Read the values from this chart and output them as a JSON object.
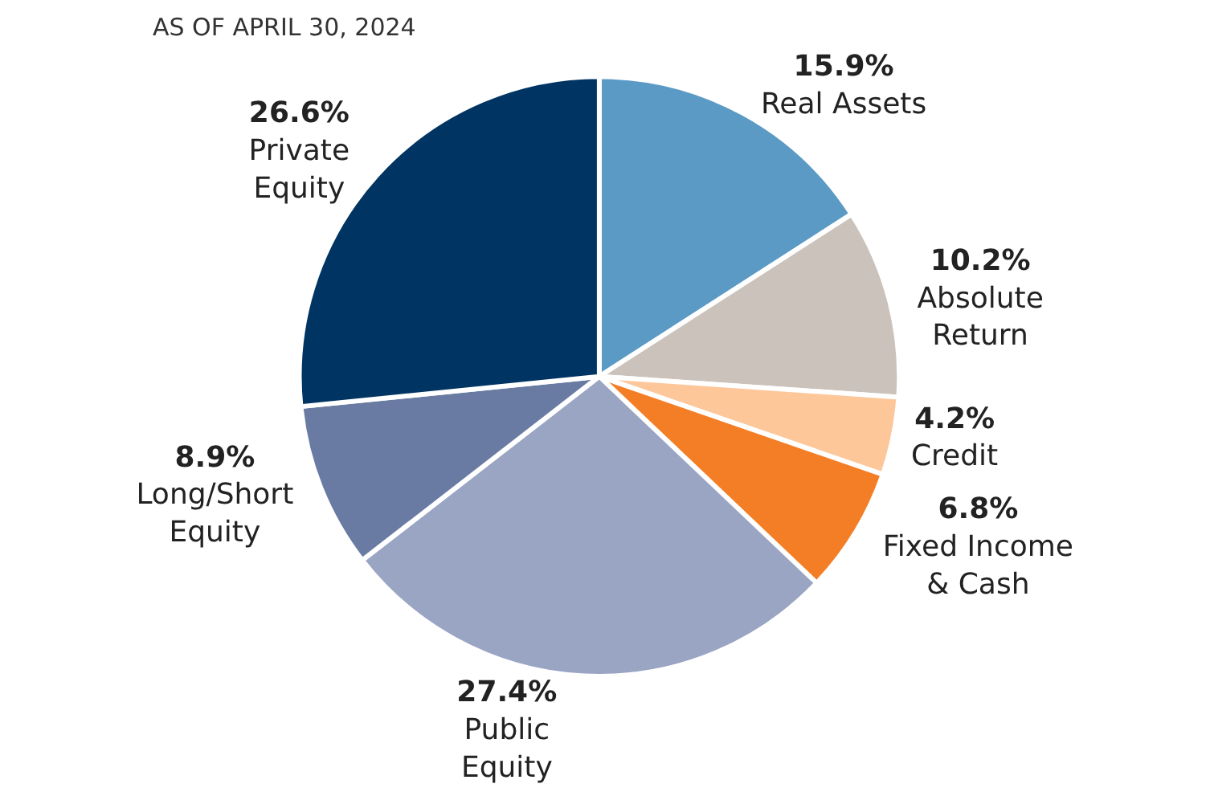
{
  "chart_data": {
    "type": "pie",
    "subtitle": "AS OF APRIL 30, 2024",
    "categories": [
      "Real Assets",
      "Absolute Return",
      "Credit",
      "Fixed Income & Cash",
      "Public Equity",
      "Long/Short Equity",
      "Private Equity"
    ],
    "values": [
      15.9,
      10.2,
      4.2,
      6.8,
      27.4,
      8.9,
      26.6
    ],
    "value_labels": [
      "15.9%",
      "10.2%",
      "4.2%",
      "6.8%",
      "27.4%",
      "8.9%",
      "26.6%"
    ],
    "colors": [
      "#5b9ac4",
      "#cbc2bb",
      "#fdc79a",
      "#f47e25",
      "#9aa5c4",
      "#6a7ba3",
      "#003462"
    ],
    "legend": false
  }
}
